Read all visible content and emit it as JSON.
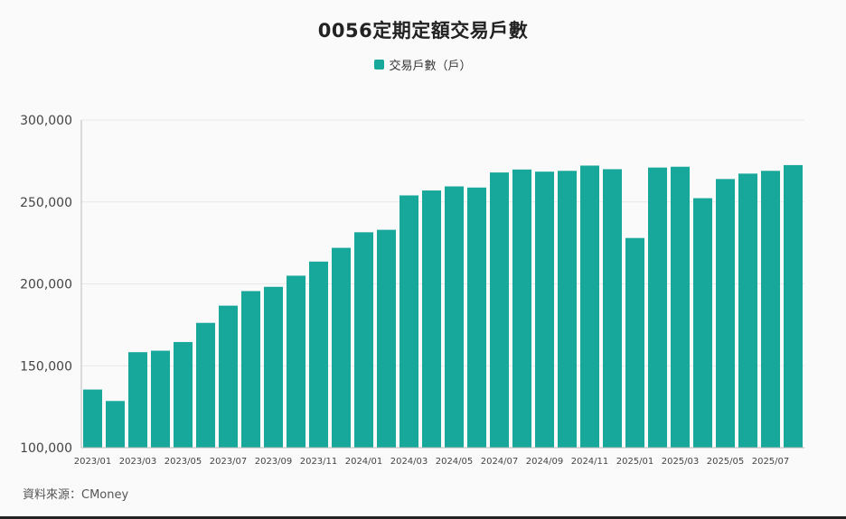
{
  "title": "0056定期定額交易戶數",
  "source": "資料來源：CMoney",
  "colors": {
    "bar": "#18a79b",
    "grid": "#e8e8e8",
    "axis": "#bbbbbb"
  },
  "chart_data": {
    "type": "bar",
    "title": "0056定期定額交易戶數",
    "xlabel": "",
    "ylabel": "",
    "ylim": [
      100000,
      300000
    ],
    "yticks": [
      100000,
      150000,
      200000,
      250000,
      300000
    ],
    "ytick_labels": [
      "100,000",
      "150,000",
      "200,000",
      "250,000",
      "300,000"
    ],
    "grid": true,
    "legend_position": "top-center",
    "categories": [
      "2023/01",
      "2023/02",
      "2023/03",
      "2023/04",
      "2023/05",
      "2023/06",
      "2023/07",
      "2023/08",
      "2023/09",
      "2023/10",
      "2023/11",
      "2023/12",
      "2024/01",
      "2024/02",
      "2024/03",
      "2024/04",
      "2024/05",
      "2024/06",
      "2024/07",
      "2024/08",
      "2024/09",
      "2024/10",
      "2024/11",
      "2024/12",
      "2025/01",
      "2025/02",
      "2025/03",
      "2025/04",
      "2025/05",
      "2025/06",
      "2025/07",
      "2025/08"
    ],
    "xtick_labels": [
      "2023/01",
      "",
      "2023/03",
      "",
      "2023/05",
      "",
      "2023/07",
      "",
      "2023/09",
      "",
      "2023/11",
      "",
      "2024/01",
      "",
      "2024/03",
      "",
      "2024/05",
      "",
      "2024/07",
      "",
      "2024/09",
      "",
      "2024/11",
      "",
      "2025/01",
      "",
      "2025/03",
      "",
      "2025/05",
      "",
      "2025/07",
      ""
    ],
    "series": [
      {
        "name": "交易戶數（戶）",
        "values": [
          135500,
          128500,
          158300,
          159200,
          164500,
          176200,
          186700,
          195600,
          198200,
          205000,
          213600,
          222000,
          231500,
          233000,
          254000,
          257000,
          259500,
          258800,
          268000,
          269800,
          268500,
          269000,
          272200,
          270000,
          228000,
          271000,
          271500,
          252300,
          264000,
          267300,
          269000,
          272500
        ]
      }
    ]
  }
}
